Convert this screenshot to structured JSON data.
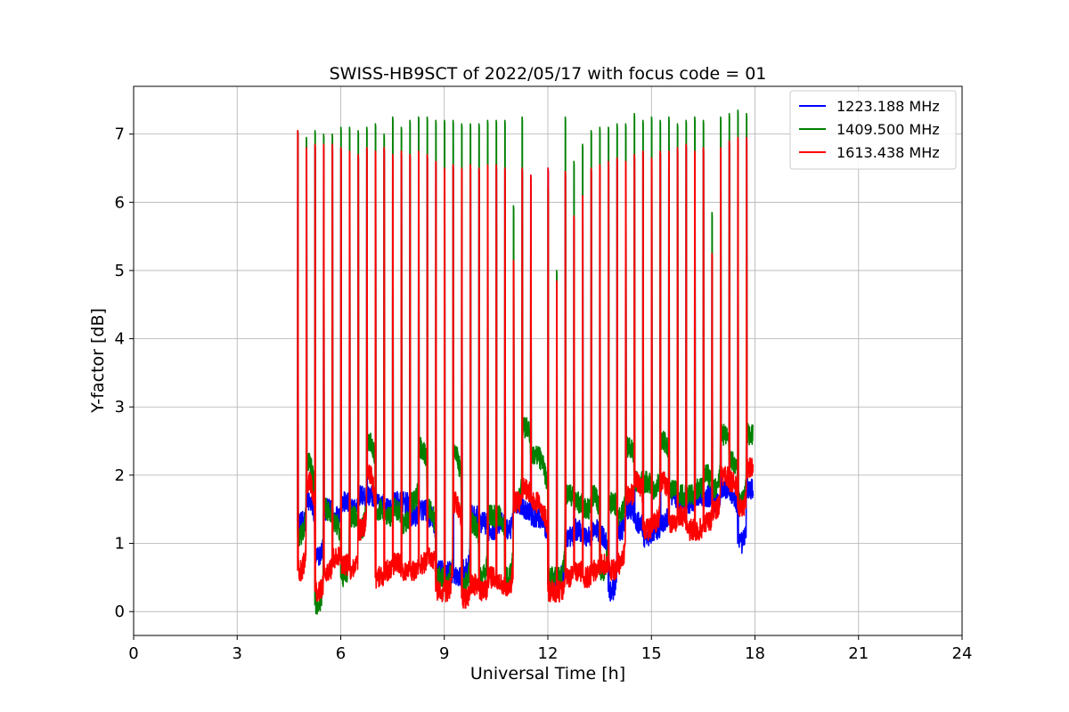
{
  "chart_data": {
    "type": "line",
    "title": "SWISS-HB9SCT of 2022/05/17 with focus code = 01",
    "xlabel": "Universal Time [h]",
    "ylabel": "Y-factor [dB]",
    "xlim": [
      0,
      24
    ],
    "ylim": [
      -0.35,
      7.7
    ],
    "xticks": [
      0,
      3,
      6,
      9,
      12,
      15,
      18,
      21,
      24
    ],
    "yticks": [
      0,
      1,
      2,
      3,
      4,
      5,
      6,
      7
    ],
    "grid": true,
    "legend_position": "top-right",
    "spike_times": [
      4.75,
      5.0,
      5.25,
      5.5,
      5.75,
      6.0,
      6.25,
      6.5,
      6.75,
      7.0,
      7.25,
      7.5,
      7.75,
      8.0,
      8.25,
      8.5,
      8.75,
      9.0,
      9.25,
      9.5,
      9.75,
      10.0,
      10.25,
      10.5,
      10.75,
      11.0,
      11.25,
      11.5,
      12.0,
      12.25,
      12.5,
      12.75,
      13.0,
      13.25,
      13.5,
      13.75,
      14.0,
      14.25,
      14.5,
      14.75,
      15.0,
      15.25,
      15.5,
      15.75,
      16.0,
      16.25,
      16.5,
      16.75,
      17.0,
      17.25,
      17.5,
      17.75
    ],
    "series": [
      {
        "name": "1223.188 MHz",
        "color": "#0000ff",
        "baseline": [
          1.3,
          1.6,
          0.8,
          1.5,
          1.4,
          1.6,
          1.5,
          1.7,
          1.7,
          1.6,
          1.5,
          1.6,
          1.6,
          1.4,
          1.5,
          1.4,
          0.6,
          0.6,
          0.5,
          0.6,
          1.4,
          1.3,
          1.2,
          1.3,
          1.2,
          1.6,
          1.5,
          1.4,
          0.4,
          0.5,
          1.1,
          1.2,
          1.1,
          1.2,
          1.1,
          0.3,
          1.2,
          1.5,
          1.3,
          1.1,
          1.2,
          1.3,
          1.7,
          1.6,
          1.6,
          1.7,
          1.7,
          1.6,
          1.8,
          1.7,
          1.0,
          1.8
        ],
        "peaks": [
          7.05,
          6.8,
          6.85,
          6.8,
          6.85,
          6.8,
          6.75,
          6.7,
          6.8,
          6.75,
          6.8,
          6.7,
          6.75,
          6.7,
          6.75,
          6.7,
          6.6,
          6.5,
          6.55,
          6.5,
          6.55,
          6.5,
          6.55,
          6.55,
          6.5,
          5.15,
          6.5,
          6.4,
          6.5,
          4.85,
          6.45,
          5.8,
          6.1,
          6.5,
          6.55,
          6.6,
          6.65,
          6.6,
          6.7,
          6.75,
          6.65,
          6.75,
          6.75,
          6.8,
          6.85,
          6.75,
          6.8,
          5.25,
          6.8,
          6.9,
          6.95,
          6.95
        ]
      },
      {
        "name": "1409.500 MHz",
        "color": "#008000",
        "baseline": [
          1.1,
          2.2,
          0.1,
          1.5,
          1.3,
          0.5,
          1.4,
          1.2,
          2.5,
          1.5,
          1.4,
          1.5,
          1.3,
          1.6,
          2.4,
          1.5,
          0.5,
          0.4,
          2.3,
          0.4,
          1.3,
          0.5,
          1.4,
          1.4,
          0.5,
          1.6,
          2.7,
          2.3,
          0.5,
          0.5,
          1.7,
          1.6,
          1.5,
          1.7,
          0.6,
          1.6,
          1.4,
          2.4,
          1.9,
          1.9,
          1.8,
          2.5,
          1.8,
          1.7,
          1.7,
          1.8,
          2.0,
          1.8,
          2.6,
          2.2,
          1.6,
          2.6
        ],
        "peaks": [
          7.05,
          6.95,
          7.05,
          7.0,
          7.0,
          7.1,
          7.1,
          7.05,
          7.1,
          7.15,
          7.0,
          7.25,
          7.1,
          7.2,
          7.25,
          7.25,
          7.2,
          7.2,
          7.2,
          7.15,
          7.15,
          7.15,
          7.2,
          7.2,
          7.2,
          5.95,
          7.25,
          5.25,
          6.2,
          5.0,
          7.25,
          6.6,
          6.85,
          7.05,
          7.1,
          7.1,
          7.15,
          7.15,
          7.3,
          7.2,
          7.25,
          7.2,
          7.25,
          7.15,
          7.2,
          7.25,
          7.2,
          5.85,
          7.25,
          7.3,
          7.35,
          7.3
        ]
      },
      {
        "name": "1613.438 MHz",
        "color": "#ff0000",
        "baseline": [
          0.6,
          1.9,
          0.3,
          0.6,
          0.8,
          0.7,
          0.6,
          1.2,
          2.0,
          0.5,
          0.6,
          0.7,
          0.6,
          0.6,
          0.7,
          0.8,
          0.3,
          0.3,
          1.6,
          0.2,
          0.4,
          0.3,
          0.5,
          0.4,
          0.3,
          1.6,
          1.8,
          1.6,
          0.3,
          0.3,
          0.5,
          0.6,
          0.5,
          0.6,
          0.7,
          0.6,
          0.7,
          1.7,
          1.9,
          1.2,
          1.3,
          1.9,
          1.3,
          1.4,
          1.2,
          1.2,
          1.3,
          1.5,
          2.0,
          1.9,
          1.5,
          2.1
        ],
        "peaks": [
          7.05,
          6.8,
          6.85,
          6.85,
          6.85,
          6.8,
          6.75,
          6.7,
          6.8,
          6.75,
          6.8,
          6.7,
          6.75,
          6.7,
          6.75,
          6.7,
          6.6,
          6.5,
          6.55,
          6.5,
          6.55,
          6.5,
          6.55,
          6.55,
          6.5,
          5.15,
          6.5,
          6.4,
          6.5,
          4.85,
          6.45,
          5.8,
          6.1,
          6.5,
          6.55,
          6.6,
          6.65,
          6.6,
          6.7,
          6.75,
          6.65,
          6.75,
          6.75,
          6.8,
          6.85,
          6.75,
          6.8,
          5.25,
          6.8,
          6.9,
          6.95,
          6.95
        ]
      }
    ],
    "data_end_time": 17.95
  }
}
